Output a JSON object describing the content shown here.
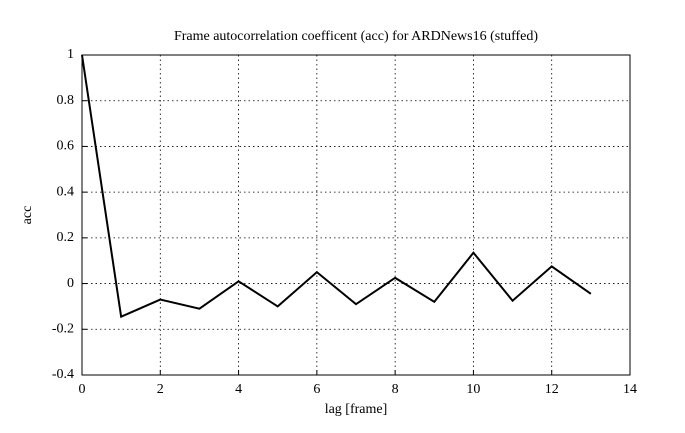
{
  "chart_data": {
    "type": "line",
    "title": "Frame autocorrelation coefficent (acc) for ARDNews16 (stuffed)",
    "xlabel": "lag [frame]",
    "ylabel": "acc",
    "x": [
      0,
      1,
      2,
      3,
      4,
      5,
      6,
      7,
      8,
      9,
      10,
      11,
      12,
      13
    ],
    "values": [
      1.0,
      -0.145,
      -0.07,
      -0.11,
      0.01,
      -0.1,
      0.05,
      -0.09,
      0.025,
      -0.08,
      0.135,
      -0.075,
      0.075,
      -0.045
    ],
    "color": "#000000",
    "xlim": [
      0,
      14
    ],
    "xticks": [
      0,
      2,
      4,
      6,
      8,
      10,
      12,
      14
    ],
    "ylim": [
      -0.4,
      1
    ],
    "yticks": [
      -0.4,
      -0.2,
      0,
      0.2,
      0.4,
      0.6,
      0.8,
      1
    ],
    "grid": true
  }
}
